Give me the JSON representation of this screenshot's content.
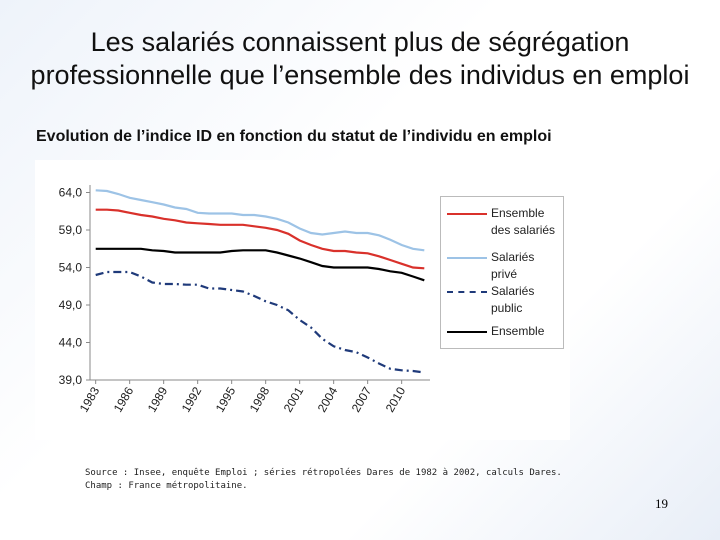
{
  "slide": {
    "title": "Les salariés connaissent plus de ségrégation professionnelle que l’ensemble des individus en emploi",
    "subtitle": "Evolution de l’indice ID en fonction du statut de l’individu en emploi",
    "source": "Source : Insee, enquête Emploi ; séries rétropolées Dares de 1982 à 2002, calculs Dares.",
    "champ": "Champ : France métropolitaine.",
    "page_number": "19"
  },
  "chart_data": {
    "type": "line",
    "x": [
      1983,
      1984,
      1985,
      1986,
      1987,
      1988,
      1989,
      1990,
      1991,
      1992,
      1993,
      1994,
      1995,
      1996,
      1997,
      1998,
      1999,
      2000,
      2001,
      2002,
      2003,
      2004,
      2005,
      2006,
      2007,
      2008,
      2009,
      2010,
      2011,
      2012
    ],
    "series": [
      {
        "name": "Ensemble des salariés",
        "color": "#d9312b",
        "dash": "none",
        "values": [
          61.7,
          61.7,
          61.6,
          61.3,
          61.0,
          60.8,
          60.5,
          60.3,
          60.0,
          59.9,
          59.8,
          59.7,
          59.7,
          59.7,
          59.5,
          59.3,
          59.0,
          58.5,
          57.6,
          57.0,
          56.5,
          56.2,
          56.2,
          56.0,
          55.9,
          55.5,
          55.0,
          54.5,
          54.0,
          53.9
        ]
      },
      {
        "name": "Salariés privé",
        "color": "#9dc3e6",
        "dash": "none",
        "values": [
          64.3,
          64.2,
          63.8,
          63.3,
          63.0,
          62.7,
          62.4,
          62.0,
          61.8,
          61.3,
          61.2,
          61.2,
          61.2,
          61.0,
          61.0,
          60.8,
          60.5,
          60.0,
          59.2,
          58.6,
          58.4,
          58.6,
          58.8,
          58.6,
          58.6,
          58.3,
          57.7,
          57.0,
          56.5,
          56.3
        ]
      },
      {
        "name": "Salariés public",
        "color": "#1f3a7a",
        "dash": "8,4,2,4",
        "values": [
          53.0,
          53.4,
          53.4,
          53.4,
          52.8,
          52.0,
          51.8,
          51.8,
          51.7,
          51.7,
          51.2,
          51.2,
          51.0,
          50.8,
          50.2,
          49.5,
          49.0,
          48.3,
          47.0,
          46.0,
          44.5,
          43.5,
          43.0,
          42.7,
          42.0,
          41.2,
          40.5,
          40.3,
          40.2,
          40.0
        ]
      },
      {
        "name": "Ensemble",
        "color": "#000000",
        "dash": "none",
        "values": [
          56.5,
          56.5,
          56.5,
          56.5,
          56.5,
          56.3,
          56.2,
          56.0,
          56.0,
          56.0,
          56.0,
          56.0,
          56.2,
          56.3,
          56.3,
          56.3,
          56.0,
          55.6,
          55.2,
          54.7,
          54.2,
          54.0,
          54.0,
          54.0,
          54.0,
          53.8,
          53.5,
          53.3,
          52.8,
          52.3
        ]
      }
    ],
    "xlim": [
      1982.5,
      2012.5
    ],
    "xticks": [
      1983,
      1986,
      1989,
      1992,
      1995,
      1998,
      2001,
      2004,
      2007,
      2010
    ],
    "ylim": [
      39,
      65
    ],
    "yticks": [
      {
        "value": 39,
        "label": "39,0"
      },
      {
        "value": 44,
        "label": "44,0"
      },
      {
        "value": 49,
        "label": "49,0"
      },
      {
        "value": 54,
        "label": "54,0"
      },
      {
        "value": 59,
        "label": "59,0"
      },
      {
        "value": 64,
        "label": "64,0"
      }
    ]
  }
}
